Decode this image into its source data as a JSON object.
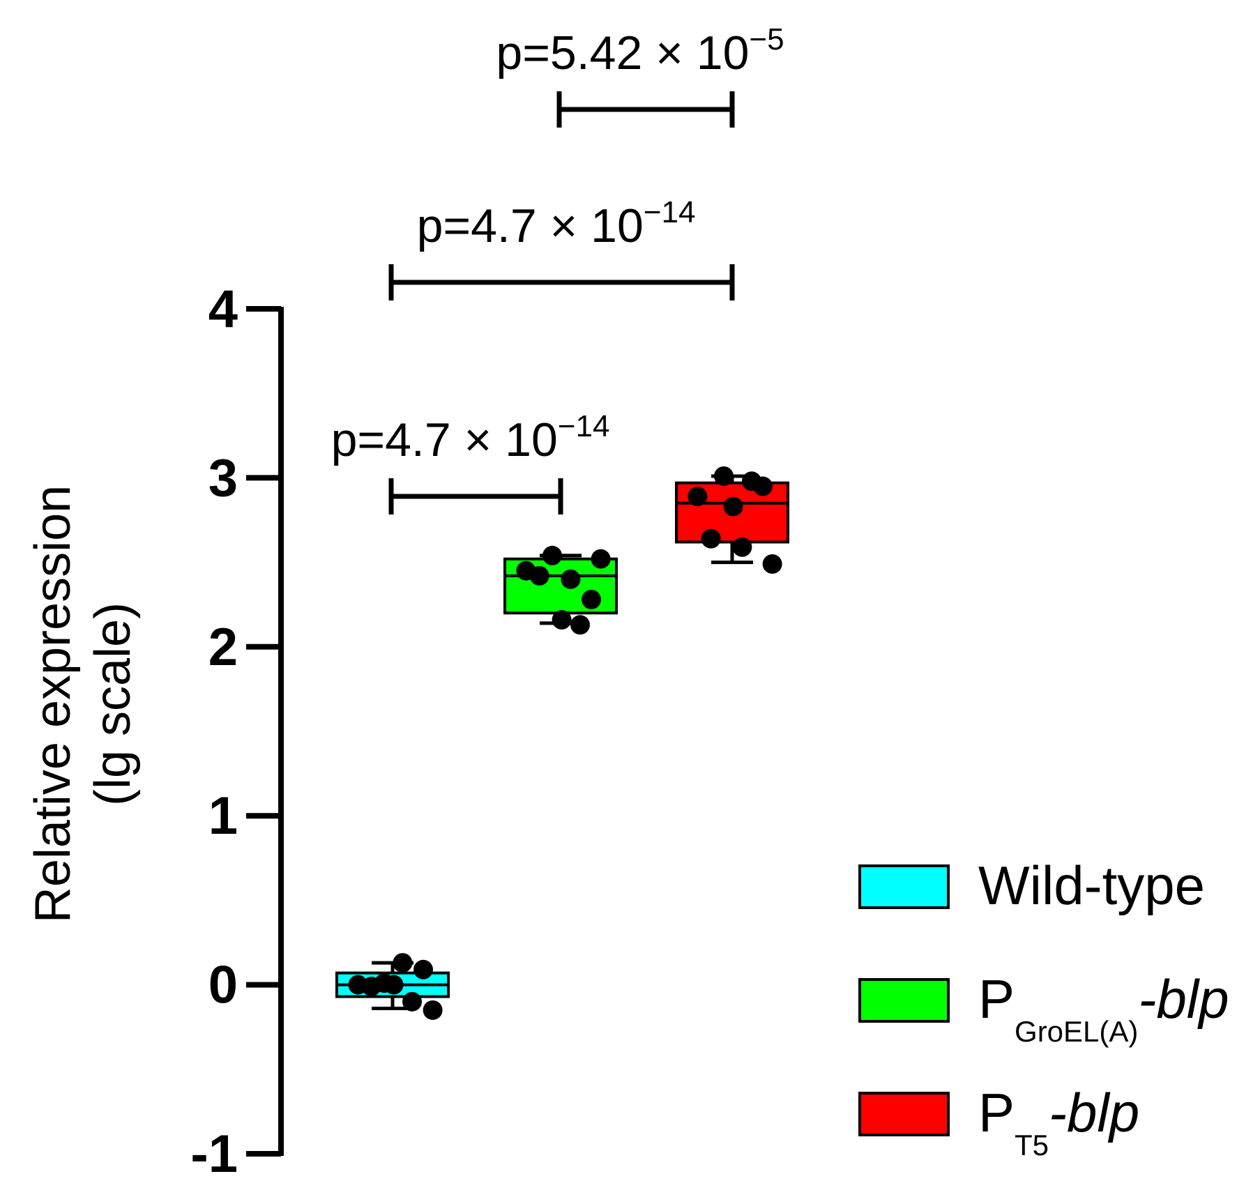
{
  "chart_data": {
    "type": "box",
    "ylabel_line1": "Relative expression",
    "ylabel_line2": "(lg scale)",
    "ylim": [
      -1,
      4
    ],
    "yticks": [
      "-1",
      "0",
      "1",
      "2",
      "3",
      "4"
    ],
    "groups": [
      {
        "name": "Wild-type",
        "color": "#00ffff",
        "box": {
          "whisker_low": -0.14,
          "q1": -0.07,
          "median": 0.0,
          "q3": 0.07,
          "whisker_high": 0.13
        },
        "points": [
          0.0,
          -0.01,
          0.01,
          0.0,
          0.13,
          -0.1,
          0.09,
          -0.15
        ]
      },
      {
        "name": "PGroEL(A)-blp",
        "color": "#00ff00",
        "box": {
          "whisker_low": 2.14,
          "q1": 2.2,
          "median": 2.42,
          "q3": 2.52,
          "whisker_high": 2.54
        },
        "points": [
          2.45,
          2.42,
          2.54,
          2.16,
          2.4,
          2.13,
          2.28,
          2.52
        ]
      },
      {
        "name": "PT5-blp",
        "color": "#ff0000",
        "box": {
          "whisker_low": 2.5,
          "q1": 2.62,
          "median": 2.85,
          "q3": 2.97,
          "whisker_high": 3.01
        },
        "points": [
          2.89,
          2.64,
          3.01,
          2.83,
          2.59,
          2.98,
          2.95,
          2.49
        ]
      }
    ],
    "comparisons": [
      {
        "from": 0,
        "to": 1,
        "p_base": "p=4.7 × 10",
        "p_exp": "−14",
        "level": 1
      },
      {
        "from": 0,
        "to": 2,
        "p_base": "p=4.7 × 10",
        "p_exp": "−14",
        "level": 2
      },
      {
        "from": 1,
        "to": 2,
        "p_base": "p=5.42 × 10",
        "p_exp": "−5",
        "level": 3
      }
    ],
    "legend": {
      "position": "bottom-right",
      "entries": [
        {
          "main": "Wild-type",
          "sub": "",
          "suffix": "",
          "color": "#00ffff"
        },
        {
          "main": "P",
          "sub": "GroEL(A)",
          "suffix": "-blp",
          "color": "#00ff00"
        },
        {
          "main": "P",
          "sub": "T5",
          "suffix": "-blp",
          "color": "#ff0000"
        }
      ]
    }
  }
}
